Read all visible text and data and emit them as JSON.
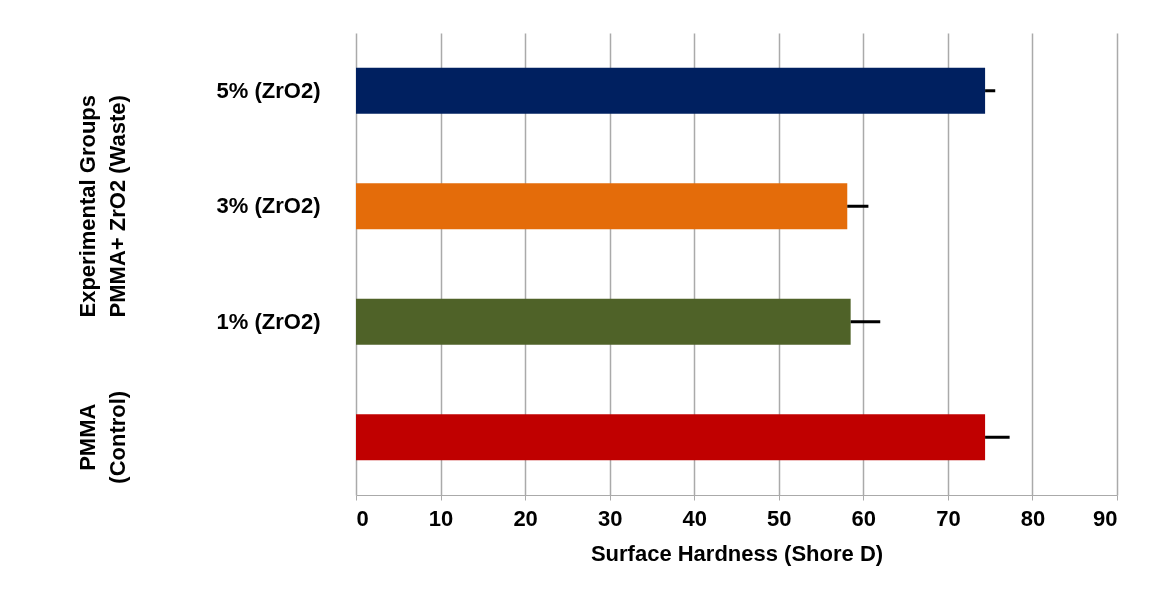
{
  "chart_data": {
    "type": "bar",
    "orientation": "horizontal",
    "xlabel": "Surface Hardness (Shore D)",
    "categories": [
      "5% (ZrO2)",
      "3% (ZrO2)",
      "1% (ZrO2)",
      null
    ],
    "values": [
      74.4,
      58.1,
      58.5,
      74.4
    ],
    "errors": [
      [
        74.4,
        75.6
      ],
      [
        58.1,
        60.6
      ],
      [
        58.5,
        62.0
      ],
      [
        74.4,
        77.3
      ]
    ],
    "colors": [
      "#002060",
      "#e46c0a",
      "#4f6228",
      "#c00000"
    ],
    "xlim": [
      0,
      90
    ],
    "xticks": [
      0,
      10,
      20,
      30,
      40,
      50,
      60,
      70,
      80,
      90
    ],
    "grid": "x",
    "annotations": [
      "Experimental Groups PMMA+ ZrO2 (Waste)",
      "PMMA (Control)"
    ]
  }
}
